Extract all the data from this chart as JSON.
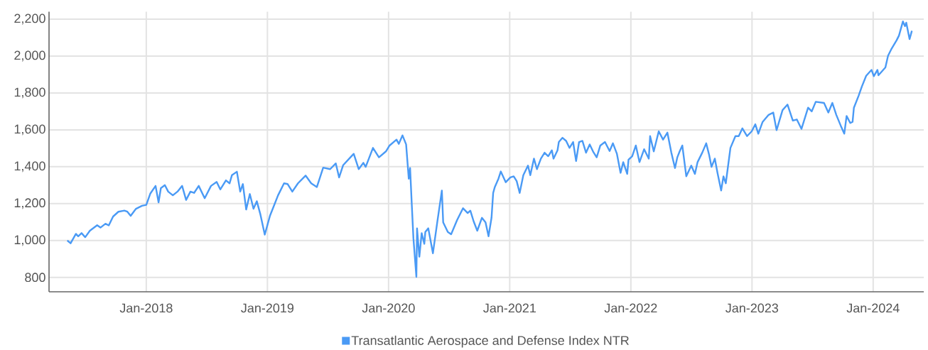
{
  "chart_data": {
    "type": "line",
    "x": [
      "2017-05-08",
      "2017-05-18",
      "2017-06-03",
      "2017-06-10",
      "2017-06-20",
      "2017-07-01",
      "2017-07-15",
      "2017-08-06",
      "2017-08-16",
      "2017-08-31",
      "2017-09-10",
      "2017-09-23",
      "2017-10-09",
      "2017-10-27",
      "2017-11-05",
      "2017-11-15",
      "2017-12-01",
      "2017-12-19",
      "2018-01-01",
      "2018-01-13",
      "2018-01-29",
      "2018-02-07",
      "2018-02-14",
      "2018-02-26",
      "2018-03-08",
      "2018-03-22",
      "2018-04-05",
      "2018-04-19",
      "2018-05-01",
      "2018-05-14",
      "2018-05-25",
      "2018-06-08",
      "2018-06-26",
      "2018-07-15",
      "2018-08-01",
      "2018-08-12",
      "2018-08-29",
      "2018-09-09",
      "2018-09-16",
      "2018-10-01",
      "2018-10-11",
      "2018-10-19",
      "2018-10-29",
      "2018-11-09",
      "2018-11-20",
      "2018-11-30",
      "2018-12-11",
      "2018-12-24",
      "2019-01-09",
      "2019-01-19",
      "2019-02-02",
      "2019-02-20",
      "2019-03-03",
      "2019-03-17",
      "2019-04-03",
      "2019-04-26",
      "2019-05-13",
      "2019-05-30",
      "2019-06-18",
      "2019-07-09",
      "2019-07-26",
      "2019-08-05",
      "2019-08-17",
      "2019-09-08",
      "2019-09-18",
      "2019-10-03",
      "2019-10-17",
      "2019-10-24",
      "2019-11-15",
      "2019-12-03",
      "2019-12-24",
      "2020-01-04",
      "2020-01-25",
      "2020-02-01",
      "2020-02-12",
      "2020-02-23",
      "2020-03-02",
      "2020-03-06",
      "2020-03-11",
      "2020-03-16",
      "2020-03-25",
      "2020-03-27",
      "2020-04-03",
      "2020-04-10",
      "2020-04-18",
      "2020-04-21",
      "2020-04-30",
      "2020-05-14",
      "2020-05-27",
      "2020-06-10",
      "2020-06-14",
      "2020-06-28",
      "2020-07-08",
      "2020-07-26",
      "2020-08-13",
      "2020-08-27",
      "2020-09-04",
      "2020-09-14",
      "2020-09-25",
      "2020-10-09",
      "2020-10-20",
      "2020-10-29",
      "2020-11-07",
      "2020-11-12",
      "2020-11-17",
      "2020-11-28",
      "2020-12-05",
      "2020-12-20",
      "2021-01-03",
      "2021-01-13",
      "2021-01-22",
      "2021-01-31",
      "2021-02-11",
      "2021-02-25",
      "2021-03-04",
      "2021-03-15",
      "2021-03-24",
      "2021-04-05",
      "2021-04-16",
      "2021-04-27",
      "2021-05-08",
      "2021-05-13",
      "2021-05-25",
      "2021-05-29",
      "2021-06-09",
      "2021-06-20",
      "2021-06-30",
      "2021-07-11",
      "2021-07-20",
      "2021-07-29",
      "2021-08-08",
      "2021-08-19",
      "2021-08-30",
      "2021-09-09",
      "2021-09-20",
      "2021-10-01",
      "2021-10-15",
      "2021-10-29",
      "2021-11-08",
      "2021-11-20",
      "2021-12-01",
      "2021-12-09",
      "2021-12-21",
      "2021-12-25",
      "2022-01-05",
      "2022-01-16",
      "2022-01-27",
      "2022-02-10",
      "2022-02-24",
      "2022-02-28",
      "2022-03-11",
      "2022-03-26",
      "2022-04-08",
      "2022-04-21",
      "2022-05-03",
      "2022-05-14",
      "2022-05-21",
      "2022-05-28",
      "2022-06-05",
      "2022-06-17",
      "2022-07-02",
      "2022-07-13",
      "2022-07-21",
      "2022-08-04",
      "2022-08-16",
      "2022-08-25",
      "2022-09-01",
      "2022-09-11",
      "2022-09-19",
      "2022-09-30",
      "2022-10-07",
      "2022-10-14",
      "2022-10-28",
      "2022-11-12",
      "2022-11-22",
      "2022-12-03",
      "2022-12-17",
      "2022-12-31",
      "2023-01-11",
      "2023-01-20",
      "2023-02-02",
      "2023-02-20",
      "2023-03-06",
      "2023-03-16",
      "2023-04-03",
      "2023-04-18",
      "2023-05-04",
      "2023-05-16",
      "2023-05-30",
      "2023-06-19",
      "2023-06-30",
      "2023-07-12",
      "2023-08-06",
      "2023-08-19",
      "2023-08-31",
      "2023-09-12",
      "2023-09-25",
      "2023-10-06",
      "2023-10-13",
      "2023-10-24",
      "2023-10-31",
      "2023-11-04",
      "2023-11-18",
      "2023-11-28",
      "2023-12-11",
      "2023-12-27",
      "2024-01-03",
      "2024-01-14",
      "2024-01-17",
      "2024-02-07",
      "2024-02-15",
      "2024-02-26",
      "2024-03-12",
      "2024-03-19",
      "2024-03-31",
      "2024-04-06",
      "2024-04-10",
      "2024-04-20",
      "2024-04-27"
    ],
    "series": [
      {
        "name": "Transatlantic Aerospace and Defense Index NTR",
        "color": "#4a9af5",
        "values": [
          1000,
          985,
          1036,
          1023,
          1040,
          1018,
          1053,
          1083,
          1070,
          1091,
          1082,
          1130,
          1156,
          1162,
          1156,
          1134,
          1172,
          1188,
          1193,
          1254,
          1296,
          1207,
          1284,
          1300,
          1265,
          1245,
          1265,
          1296,
          1220,
          1265,
          1258,
          1296,
          1229,
          1296,
          1318,
          1277,
          1326,
          1310,
          1354,
          1373,
          1265,
          1306,
          1168,
          1252,
          1172,
          1213,
          1140,
          1032,
          1136,
          1181,
          1245,
          1310,
          1306,
          1265,
          1310,
          1352,
          1310,
          1290,
          1395,
          1387,
          1418,
          1342,
          1408,
          1451,
          1470,
          1387,
          1421,
          1399,
          1502,
          1451,
          1483,
          1515,
          1547,
          1524,
          1570,
          1521,
          1335,
          1393,
          1200,
          1014,
          803,
          1066,
          912,
          1040,
          982,
          1046,
          1066,
          931,
          1098,
          1271,
          1098,
          1046,
          1034,
          1111,
          1175,
          1149,
          1162,
          1104,
          1053,
          1123,
          1098,
          1023,
          1123,
          1258,
          1290,
          1335,
          1374,
          1316,
          1342,
          1348,
          1322,
          1258,
          1354,
          1406,
          1354,
          1444,
          1387,
          1444,
          1476,
          1457,
          1489,
          1444,
          1489,
          1534,
          1557,
          1540,
          1502,
          1534,
          1431,
          1534,
          1540,
          1476,
          1521,
          1483,
          1451,
          1515,
          1534,
          1485,
          1527,
          1470,
          1367,
          1425,
          1361,
          1438,
          1457,
          1515,
          1425,
          1495,
          1444,
          1566,
          1483,
          1592,
          1547,
          1585,
          1476,
          1393,
          1451,
          1483,
          1515,
          1348,
          1406,
          1361,
          1425,
          1476,
          1527,
          1463,
          1399,
          1444,
          1367,
          1271,
          1348,
          1310,
          1502,
          1566,
          1566,
          1608,
          1566,
          1592,
          1630,
          1579,
          1643,
          1681,
          1694,
          1598,
          1707,
          1737,
          1650,
          1656,
          1605,
          1720,
          1700,
          1752,
          1746,
          1694,
          1746,
          1681,
          1624,
          1579,
          1675,
          1637,
          1643,
          1720,
          1784,
          1835,
          1893,
          1925,
          1891,
          1925,
          1896,
          1938,
          2002,
          2041,
          2086,
          2111,
          2188,
          2162,
          2181,
          2092,
          2137
        ]
      }
    ],
    "xlim": [
      "2017-03-14",
      "2024-06-02"
    ],
    "xticks": [
      {
        "value": "2018-01-01",
        "label": "Jan-2018"
      },
      {
        "value": "2019-01-01",
        "label": "Jan-2019"
      },
      {
        "value": "2020-01-01",
        "label": "Jan-2020"
      },
      {
        "value": "2021-01-01",
        "label": "Jan-2021"
      },
      {
        "value": "2022-01-01",
        "label": "Jan-2022"
      },
      {
        "value": "2023-01-01",
        "label": "Jan-2023"
      },
      {
        "value": "2024-01-01",
        "label": "Jan-2024"
      }
    ],
    "ylim": [
      722,
      2240
    ],
    "yticks": [
      800,
      {
        "value": 1000,
        "label": "1,000"
      },
      {
        "value": 1200,
        "label": "1,200"
      },
      {
        "value": 1400,
        "label": "1,400"
      },
      {
        "value": 1600,
        "label": "1,600"
      },
      {
        "value": 1800,
        "label": "1,800"
      },
      {
        "value": 2000,
        "label": "2,000"
      },
      {
        "value": 2200,
        "label": "2,200"
      }
    ],
    "grid": true,
    "legend": "bottom"
  }
}
